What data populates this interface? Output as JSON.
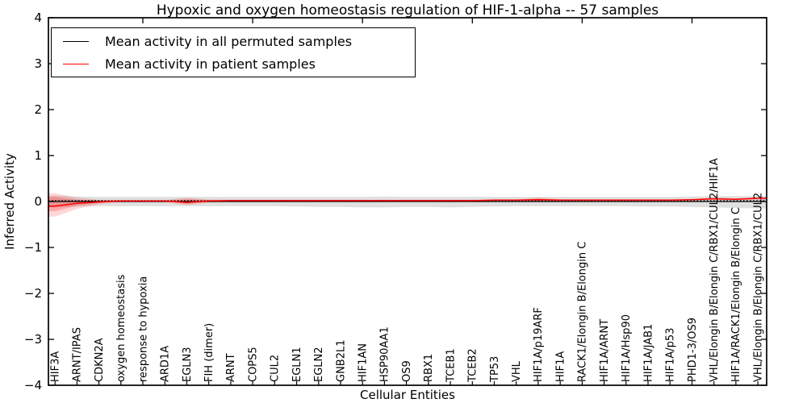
{
  "chart_data": {
    "type": "line",
    "title": "Hypoxic and oxygen homeostasis regulation of HIF-1-alpha -- 57 samples",
    "xlabel": "Cellular Entities",
    "ylabel": "Inferred Activity",
    "ylim": [
      -4,
      4
    ],
    "ytick_labels": [
      "4",
      "3",
      "2",
      "1",
      "0",
      "−1",
      "−2",
      "−3",
      "−4"
    ],
    "ytick_values": [
      4,
      3,
      2,
      1,
      0,
      -1,
      -2,
      -3,
      -4
    ],
    "top_tick_positions": [
      5,
      10,
      15,
      20,
      25,
      30
    ],
    "grid": false,
    "legend_position": "upper left",
    "categories": [
      "HIF3A",
      "ARNT/IPAS",
      "CDKN2A",
      "oxygen homeostasis",
      "response to hypoxia",
      "ARD1A",
      "EGLN3",
      "FIH (dimer)",
      "ARNT",
      "COPS5",
      "CUL2",
      "EGLN1",
      "EGLN2",
      "GNB2L1",
      "HIF1AN",
      "HSP90AA1",
      "OS9",
      "RBX1",
      "TCEB1",
      "TCEB2",
      "TP53",
      "VHL",
      "HIF1A/p19ARF",
      "HIF1A",
      "RACK1/Elongin B/Elongin C",
      "HIF1A/ARNT",
      "HIF1A/Hsp90",
      "HIF1A/JAB1",
      "HIF1A/p53",
      "PHD1-3/OS9",
      "VHL/Elongin B/Elongin C/RBX1/CUL2/HIF1A",
      "HIF1A/RACK1/Elongin B/Elongin C",
      "VHL/Elongin B/Elongin C/RBX1/CUL2"
    ],
    "series": [
      {
        "name": "Mean activity in all permuted samples",
        "color": "#000000",
        "values": [
          0,
          0,
          0,
          0,
          0,
          0,
          0,
          0,
          0,
          0,
          0,
          0,
          0,
          0,
          0,
          0,
          0,
          0,
          0,
          0,
          0,
          0,
          0,
          0,
          0,
          0,
          0,
          0,
          0,
          0,
          0,
          0,
          0
        ]
      },
      {
        "name": "Mean activity in patient samples",
        "color": "#ff0000",
        "values": [
          -0.1,
          -0.04,
          -0.01,
          0.01,
          0.01,
          0.01,
          -0.02,
          0.01,
          0.02,
          0.02,
          0.02,
          0.02,
          0.02,
          0.02,
          0.02,
          0.02,
          0.02,
          0.02,
          0.02,
          0.02,
          0.03,
          0.03,
          0.04,
          0.03,
          0.03,
          0.03,
          0.03,
          0.03,
          0.03,
          0.04,
          0.06,
          0.05,
          0.07
        ]
      }
    ],
    "bands": [
      {
        "name": "permuted-range",
        "color": "rgba(125,125,125,0.24)",
        "upper": [
          0.13,
          0.11,
          0.1,
          0.1,
          0.1,
          0.1,
          0.1,
          0.1,
          0.1,
          0.1,
          0.1,
          0.1,
          0.1,
          0.1,
          0.1,
          0.11,
          0.1,
          0.1,
          0.1,
          0.1,
          0.1,
          0.1,
          0.1,
          0.1,
          0.1,
          0.1,
          0.1,
          0.1,
          0.1,
          0.11,
          0.12,
          0.12,
          0.12
        ],
        "lower": [
          -0.13,
          -0.11,
          -0.1,
          -0.1,
          -0.1,
          -0.1,
          -0.1,
          -0.1,
          -0.1,
          -0.1,
          -0.1,
          -0.11,
          -0.12,
          -0.12,
          -0.13,
          -0.13,
          -0.12,
          -0.12,
          -0.13,
          -0.12,
          -0.11,
          -0.1,
          -0.1,
          -0.1,
          -0.1,
          -0.1,
          -0.1,
          -0.11,
          -0.11,
          -0.12,
          -0.13,
          -0.14,
          -0.15
        ]
      },
      {
        "name": "patient-range-outer",
        "color": "rgba(255,0,0,0.16)",
        "upper": [
          0.18,
          0.08,
          0.04,
          0.03,
          0.03,
          0.03,
          0.08,
          0.04,
          0.03,
          0.03,
          0.03,
          0.03,
          0.03,
          0.03,
          0.03,
          0.03,
          0.03,
          0.03,
          0.03,
          0.03,
          0.04,
          0.04,
          0.09,
          0.05,
          0.04,
          0.04,
          0.04,
          0.04,
          0.04,
          0.05,
          0.09,
          0.07,
          0.1
        ],
        "lower": [
          -0.33,
          -0.16,
          -0.06,
          -0.01,
          -0.01,
          -0.01,
          -0.08,
          -0.02,
          0.0,
          0.0,
          0.0,
          0.0,
          0.0,
          0.0,
          0.0,
          0.0,
          0.0,
          0.0,
          0.0,
          0.0,
          0.01,
          0.01,
          0.0,
          0.01,
          0.01,
          0.01,
          0.01,
          0.01,
          0.01,
          0.02,
          0.03,
          0.02,
          0.03
        ]
      },
      {
        "name": "patient-range-inner",
        "color": "rgba(255,0,0,0.22)",
        "upper": [
          0.1,
          0.04,
          0.02,
          0.02,
          0.02,
          0.02,
          0.05,
          0.03,
          0.03,
          0.03,
          0.03,
          0.03,
          0.03,
          0.03,
          0.03,
          0.03,
          0.03,
          0.03,
          0.03,
          0.03,
          0.03,
          0.03,
          0.06,
          0.04,
          0.04,
          0.04,
          0.04,
          0.04,
          0.04,
          0.05,
          0.07,
          0.06,
          0.08
        ],
        "lower": [
          -0.21,
          -0.09,
          -0.03,
          0.0,
          0.0,
          0.0,
          -0.05,
          -0.01,
          0.01,
          0.01,
          0.01,
          0.01,
          0.01,
          0.01,
          0.01,
          0.01,
          0.01,
          0.01,
          0.01,
          0.01,
          0.02,
          0.02,
          0.01,
          0.02,
          0.02,
          0.02,
          0.02,
          0.02,
          0.02,
          0.03,
          0.05,
          0.04,
          0.06
        ]
      }
    ],
    "reference_line": {
      "value": 0.02,
      "style": "dotted",
      "color": "#000000"
    }
  }
}
